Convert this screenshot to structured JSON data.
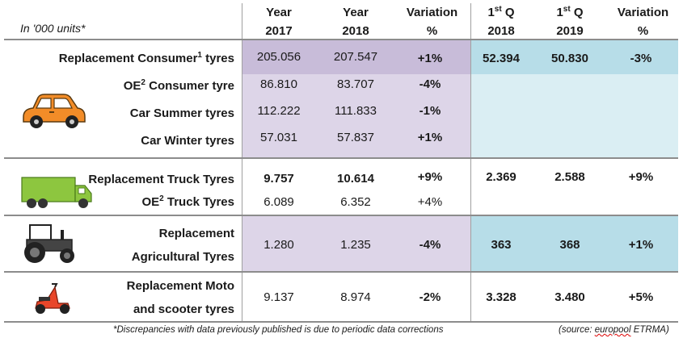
{
  "header": {
    "units": "In '000 units*",
    "col_2017": [
      "Year",
      "2017"
    ],
    "col_2018": [
      "Year",
      "2018"
    ],
    "col_var": [
      "Variation",
      "%"
    ],
    "col_q2018": [
      "1",
      "st",
      " Q",
      "2018"
    ],
    "col_q2019": [
      "1",
      "st",
      " Q",
      "2019"
    ],
    "col_qvar": [
      "Variation",
      "%"
    ]
  },
  "rows": {
    "rep_consumer": {
      "label_a": "Replacement Consumer",
      "label_sup": "1",
      "label_b": " tyres",
      "y2017": "205.056",
      "y2018": "207.547",
      "var": "+1%",
      "q2018": "52.394",
      "q2019": "50.830",
      "qvar": "-3%"
    },
    "oe_consumer": {
      "label_a": "OE",
      "label_sup": "2",
      "label_b": " Consumer tyre",
      "y2017": "86.810",
      "y2018": "83.707",
      "var": "-4%"
    },
    "car_summer": {
      "label": "Car Summer tyres",
      "y2017": "112.222",
      "y2018": "111.833",
      "var": "-1%"
    },
    "car_winter": {
      "label": "Car Winter tyres",
      "y2017": "57.031",
      "y2018": "57.837",
      "var": "+1%"
    },
    "rep_truck": {
      "label": "Replacement Truck Tyres",
      "y2017": "9.757",
      "y2018": "10.614",
      "var": "+9%",
      "q2018": "2.369",
      "q2019": "2.588",
      "qvar": "+9%"
    },
    "oe_truck": {
      "label_a": "OE",
      "label_sup": "2",
      "label_b": " Truck Tyres",
      "y2017": "6.089",
      "y2018": "6.352",
      "var": "+4%"
    },
    "rep_agri": {
      "label_1": "Replacement",
      "label_2": "Agricultural Tyres",
      "y2017": "1.280",
      "y2018": "1.235",
      "var": "-4%",
      "q2018": "363",
      "q2019": "368",
      "qvar": "+1%"
    },
    "rep_moto": {
      "label_1": "Replacement Moto",
      "label_2": "and scooter tyres",
      "y2017": "9.137",
      "y2018": "8.974",
      "var": "-2%",
      "q2018": "3.328",
      "q2019": "3.480",
      "qvar": "+5%"
    }
  },
  "footer": {
    "note": "*Discrepancies with data previously published is due to periodic data corrections",
    "source_a": "(source: ",
    "source_b": "europool",
    "source_c": " ETRMA)"
  },
  "icons": [
    "car-icon",
    "truck-icon",
    "tractor-icon",
    "scooter-icon"
  ],
  "colors": {
    "purple": "#ddd5e8",
    "blue": "#b7dde8",
    "light_blue": "#daeef3",
    "car_orange": "#f28c28",
    "truck_green": "#8dc63f",
    "scooter_red": "#e8462a"
  }
}
